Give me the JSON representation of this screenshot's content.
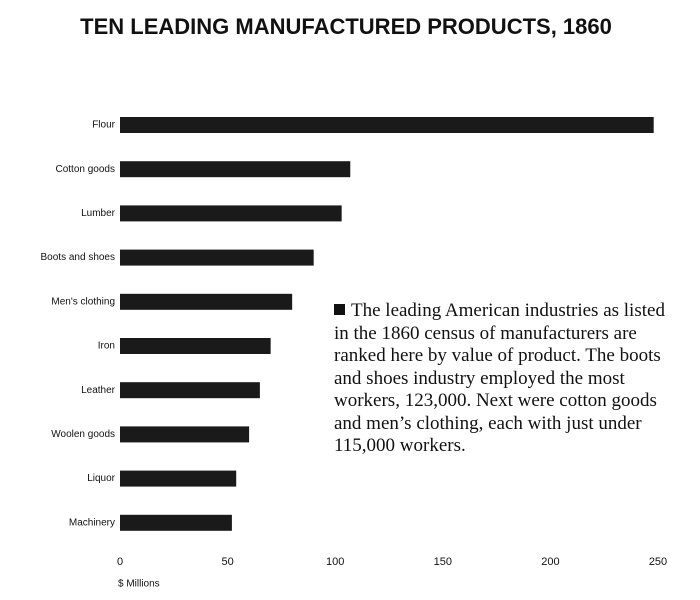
{
  "chart_data": {
    "type": "bar",
    "orientation": "horizontal",
    "title": "TEN LEADING MANUFACTURED PRODUCTS, 1860",
    "categories": [
      "Flour",
      "Cotton goods",
      "Lumber",
      "Boots and shoes",
      "Men's clothing",
      "Iron",
      "Leather",
      "Woolen goods",
      "Liquor",
      "Machinery"
    ],
    "values": [
      248,
      107,
      103,
      90,
      80,
      70,
      65,
      60,
      54,
      52
    ],
    "color": "#1a1a1a",
    "xlim": [
      0,
      250
    ],
    "xticks": [
      0,
      50,
      100,
      150,
      200,
      250
    ],
    "x_label": "$ Millions",
    "annotation": "The leading American industries as listed in the 1860 census of manufacturers are ranked here by value of product. The boots and shoes industry employed the most workers, 123,000. Next were cotton goods and men’s clothing, each with just under 115,000 workers.",
    "grid": false
  }
}
